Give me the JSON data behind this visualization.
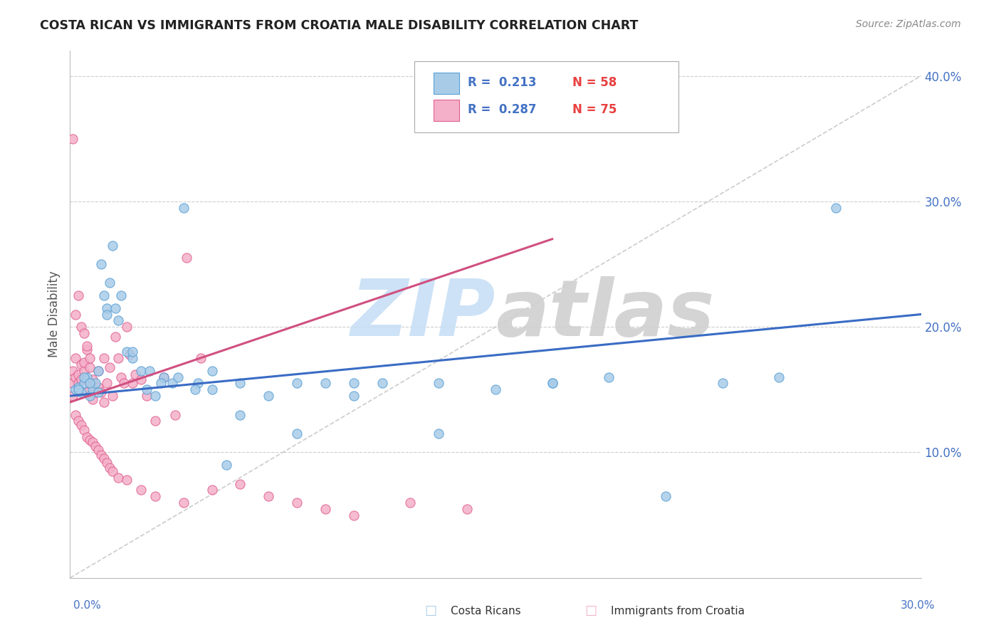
{
  "title": "COSTA RICAN VS IMMIGRANTS FROM CROATIA MALE DISABILITY CORRELATION CHART",
  "source": "Source: ZipAtlas.com",
  "ylabel": "Male Disability",
  "xlim": [
    0.0,
    0.3
  ],
  "ylim": [
    0.0,
    0.42
  ],
  "yticks": [
    0.1,
    0.2,
    0.3,
    0.4
  ],
  "ytick_labels": [
    "10.0%",
    "20.0%",
    "30.0%",
    "40.0%"
  ],
  "series1_name": "Costa Ricans",
  "series1_color": "#a8cce8",
  "series1_edge_color": "#5a9fd4",
  "series1_R": 0.213,
  "series1_N": 58,
  "series1_line_color": "#3a6cc4",
  "series2_name": "Immigrants from Croatia",
  "series2_color": "#f4b0c8",
  "series2_edge_color": "#e06090",
  "series2_R": 0.287,
  "series2_N": 75,
  "series2_line_color": "#d05080",
  "legend_R_color": "#4472c4",
  "legend_N_color": "#e84040",
  "ref_line_color": "#cccccc",
  "watermark_zip_color": "#c8dff5",
  "watermark_atlas_color": "#d0d0d0",
  "blue_line_x": [
    0.0,
    0.3
  ],
  "blue_line_y": [
    0.145,
    0.21
  ],
  "pink_line_x": [
    0.0,
    0.17
  ],
  "pink_line_y": [
    0.14,
    0.27
  ],
  "ref_line_x": [
    0.0,
    0.3
  ],
  "ref_line_y": [
    0.0,
    0.4
  ],
  "blue_x": [
    0.002,
    0.003,
    0.004,
    0.005,
    0.006,
    0.007,
    0.008,
    0.009,
    0.01,
    0.011,
    0.012,
    0.013,
    0.014,
    0.015,
    0.016,
    0.018,
    0.02,
    0.022,
    0.025,
    0.028,
    0.03,
    0.033,
    0.036,
    0.04,
    0.045,
    0.05,
    0.055,
    0.06,
    0.07,
    0.08,
    0.09,
    0.1,
    0.11,
    0.13,
    0.15,
    0.17,
    0.19,
    0.21,
    0.23,
    0.25,
    0.27,
    0.003,
    0.005,
    0.007,
    0.01,
    0.013,
    0.017,
    0.022,
    0.027,
    0.032,
    0.038,
    0.044,
    0.05,
    0.06,
    0.08,
    0.1,
    0.13,
    0.17
  ],
  "blue_y": [
    0.15,
    0.152,
    0.148,
    0.155,
    0.16,
    0.145,
    0.15,
    0.155,
    0.148,
    0.25,
    0.225,
    0.215,
    0.235,
    0.265,
    0.215,
    0.225,
    0.18,
    0.175,
    0.165,
    0.165,
    0.145,
    0.16,
    0.155,
    0.295,
    0.155,
    0.15,
    0.09,
    0.155,
    0.145,
    0.115,
    0.155,
    0.145,
    0.155,
    0.115,
    0.15,
    0.155,
    0.16,
    0.065,
    0.155,
    0.16,
    0.295,
    0.15,
    0.16,
    0.155,
    0.165,
    0.21,
    0.205,
    0.18,
    0.15,
    0.155,
    0.16,
    0.15,
    0.165,
    0.13,
    0.155,
    0.155,
    0.155,
    0.155
  ],
  "pink_x": [
    0.001,
    0.001,
    0.002,
    0.002,
    0.003,
    0.003,
    0.004,
    0.004,
    0.005,
    0.005,
    0.006,
    0.006,
    0.007,
    0.007,
    0.008,
    0.008,
    0.009,
    0.01,
    0.01,
    0.011,
    0.012,
    0.012,
    0.013,
    0.014,
    0.015,
    0.016,
    0.017,
    0.018,
    0.019,
    0.02,
    0.021,
    0.022,
    0.023,
    0.025,
    0.027,
    0.03,
    0.033,
    0.037,
    0.041,
    0.046,
    0.001,
    0.002,
    0.003,
    0.004,
    0.005,
    0.006,
    0.007,
    0.008,
    0.009,
    0.01,
    0.011,
    0.012,
    0.013,
    0.014,
    0.015,
    0.017,
    0.02,
    0.025,
    0.03,
    0.04,
    0.05,
    0.06,
    0.07,
    0.08,
    0.09,
    0.1,
    0.12,
    0.14,
    0.001,
    0.002,
    0.003,
    0.004,
    0.005,
    0.006,
    0.007
  ],
  "pink_y": [
    0.155,
    0.165,
    0.175,
    0.16,
    0.162,
    0.155,
    0.158,
    0.17,
    0.165,
    0.172,
    0.148,
    0.182,
    0.155,
    0.168,
    0.142,
    0.158,
    0.148,
    0.152,
    0.165,
    0.148,
    0.14,
    0.175,
    0.155,
    0.168,
    0.145,
    0.192,
    0.175,
    0.16,
    0.155,
    0.2,
    0.178,
    0.155,
    0.162,
    0.158,
    0.145,
    0.125,
    0.16,
    0.13,
    0.255,
    0.175,
    0.145,
    0.13,
    0.125,
    0.122,
    0.118,
    0.112,
    0.11,
    0.108,
    0.105,
    0.102,
    0.098,
    0.095,
    0.092,
    0.088,
    0.085,
    0.08,
    0.078,
    0.07,
    0.065,
    0.06,
    0.07,
    0.075,
    0.065,
    0.06,
    0.055,
    0.05,
    0.06,
    0.055,
    0.35,
    0.21,
    0.225,
    0.2,
    0.195,
    0.185,
    0.175
  ]
}
